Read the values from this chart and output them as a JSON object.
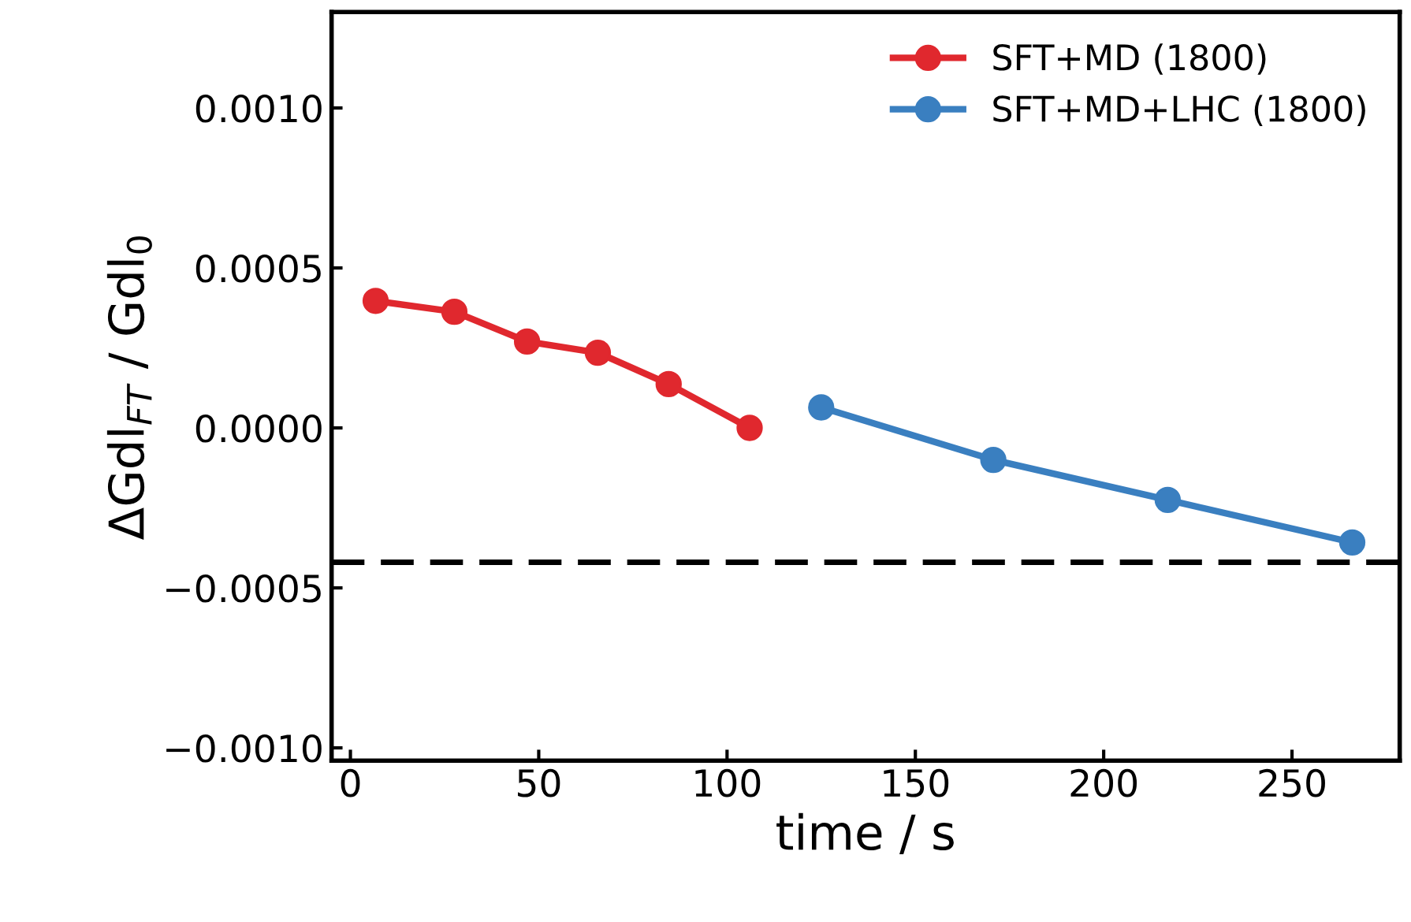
{
  "chart_data": {
    "type": "line",
    "xlabel": "time / s",
    "ylabel": "ΔGdl$_{FT}$ / Gdl$_{0}$",
    "series": [
      {
        "name": "SFT+MD (1800)",
        "color": "#e0282e",
        "x": [
          6.7,
          27.6,
          46.9,
          65.7,
          84.5,
          106
        ],
        "values": [
          0.000397,
          0.000363,
          0.00027,
          0.000235,
          0.000137,
          0.0
        ]
      },
      {
        "name": "SFT+MD+LHC (1800)",
        "color": "#3a7fc0",
        "x": [
          125,
          170.7,
          217,
          266
        ],
        "values": [
          6.4e-05,
          -0.0001,
          -0.000225,
          -0.000358
        ]
      }
    ],
    "xlim": [
      -5,
      278.6
    ],
    "xticks": [
      0,
      50,
      100,
      150,
      200,
      250
    ],
    "ylim": [
      -0.00104,
      0.0013
    ],
    "yticks": [
      {
        "value": -0.001,
        "label": "−0.0010"
      },
      {
        "value": -0.0005,
        "label": "−0.0005"
      },
      {
        "value": 0,
        "label": "0.0000"
      },
      {
        "value": 0.0005,
        "label": "0.0005"
      },
      {
        "value": 0.001,
        "label": "0.0010"
      }
    ],
    "ref_lines": [
      {
        "axis": "y",
        "value": -0.00042,
        "color": "#000000",
        "line_style": "dashed"
      }
    ],
    "marker": "circle",
    "line_style": "solid",
    "legend": "top right",
    "grid": false
  }
}
